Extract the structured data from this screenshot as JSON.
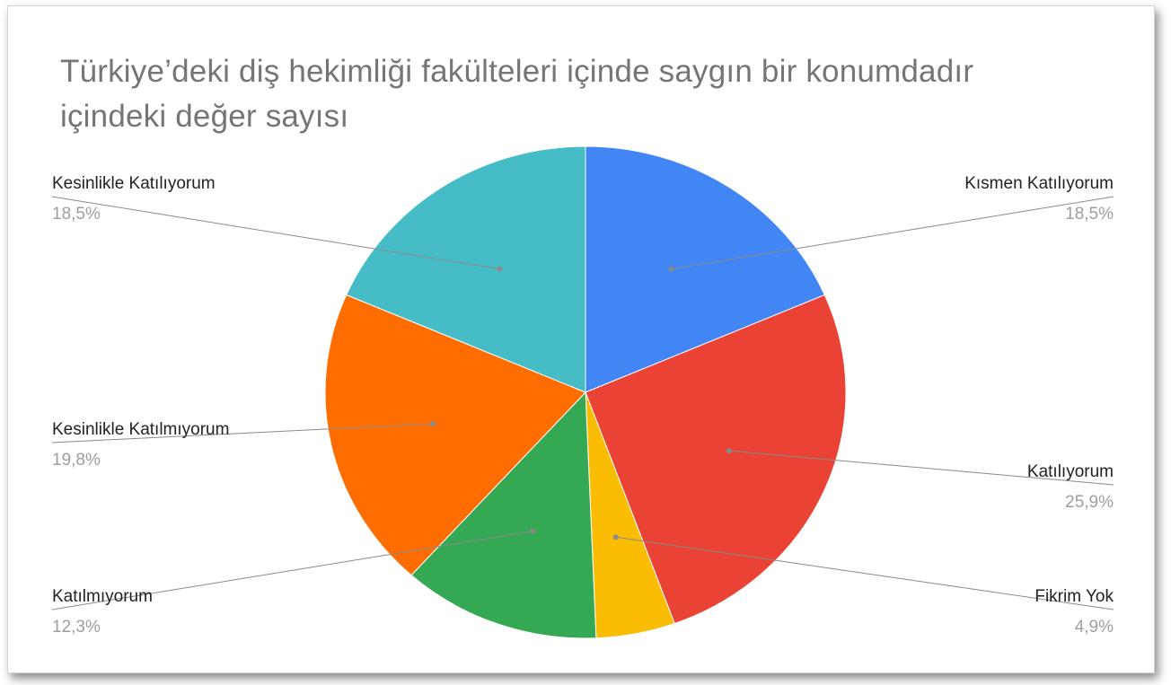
{
  "chart_data": {
    "type": "pie",
    "title": " Türkiye’deki diş hekimliği fakülteleri içinde saygın bir konumdadır içindeki değer sayısı",
    "slices": [
      {
        "label": "Kısmen Katılıyorum",
        "pct_label": "18,5%",
        "value": 18.5,
        "color": "#4285f4"
      },
      {
        "label": "Katılıyorum",
        "pct_label": "25,9%",
        "value": 25.9,
        "color": "#ea4335"
      },
      {
        "label": "Fikrim Yok",
        "pct_label": "4,9%",
        "value": 4.9,
        "color": "#fbbc04"
      },
      {
        "label": "Katılmıyorum",
        "pct_label": "12,3%",
        "value": 12.3,
        "color": "#34a853"
      },
      {
        "label": "Kesinlikle Katılmıyorum",
        "pct_label": "19,8%",
        "value": 19.8,
        "color": "#ff6d01"
      },
      {
        "label": "Kesinlikle Katılıyorum",
        "pct_label": "18,5%",
        "value": 18.5,
        "color": "#46bdc6"
      }
    ],
    "legend": "labels-outside"
  }
}
